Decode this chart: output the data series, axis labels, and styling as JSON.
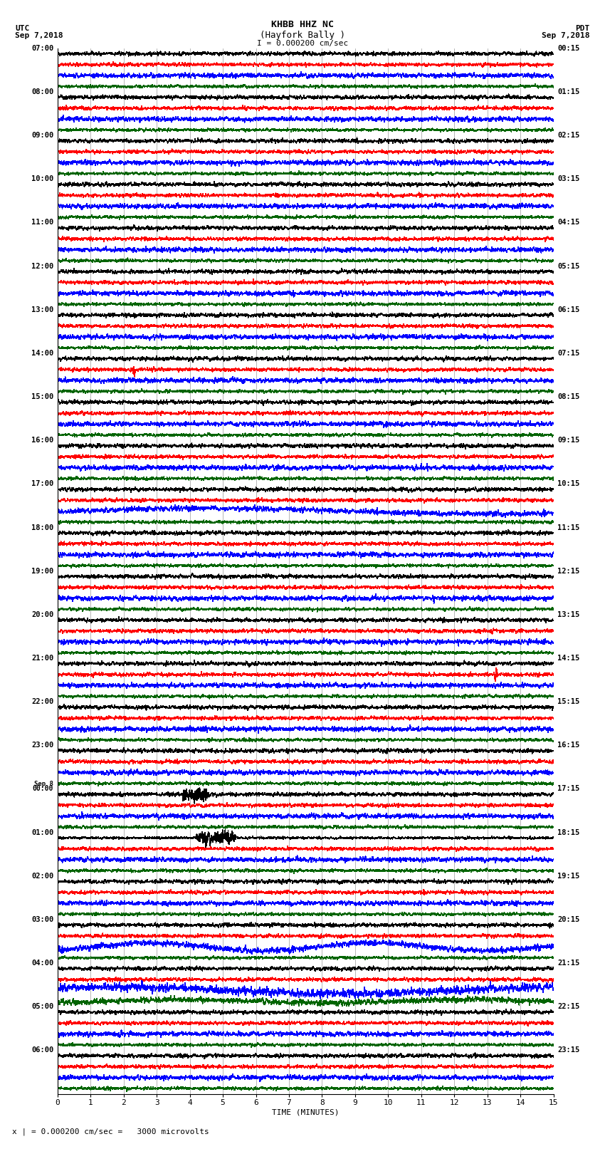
{
  "title_line1": "KHBB HHZ NC",
  "title_line2": "(Hayfork Bally )",
  "title_scale": "I = 0.000200 cm/sec",
  "left_header_line1": "UTC",
  "left_header_line2": "Sep 7,2018",
  "right_header_line1": "PDT",
  "right_header_line2": "Sep 7,2018",
  "xlabel": "TIME (MINUTES)",
  "footer": "x | = 0.000200 cm/sec =   3000 microvolts",
  "fig_width": 8.5,
  "fig_height": 16.13,
  "bg_color": "#ffffff",
  "trace_colors": [
    "#000000",
    "#ff0000",
    "#0000ff",
    "#006400"
  ],
  "grid_color": "#808080",
  "utc_times": [
    "07:00",
    "08:00",
    "09:00",
    "10:00",
    "11:00",
    "12:00",
    "13:00",
    "14:00",
    "15:00",
    "16:00",
    "17:00",
    "18:00",
    "19:00",
    "20:00",
    "21:00",
    "22:00",
    "23:00",
    "Sep 8\n00:00",
    "01:00",
    "02:00",
    "03:00",
    "04:00",
    "05:00",
    "06:00"
  ],
  "pdt_times": [
    "00:15",
    "01:15",
    "02:15",
    "03:15",
    "04:15",
    "05:15",
    "06:15",
    "07:15",
    "08:15",
    "09:15",
    "10:15",
    "11:15",
    "12:15",
    "13:15",
    "14:15",
    "15:15",
    "16:15",
    "17:15",
    "18:15",
    "19:15",
    "20:15",
    "21:15",
    "22:15",
    "23:15"
  ],
  "n_rows": 24,
  "traces_per_row": 4,
  "minutes": 15,
  "noise_seed": 42
}
